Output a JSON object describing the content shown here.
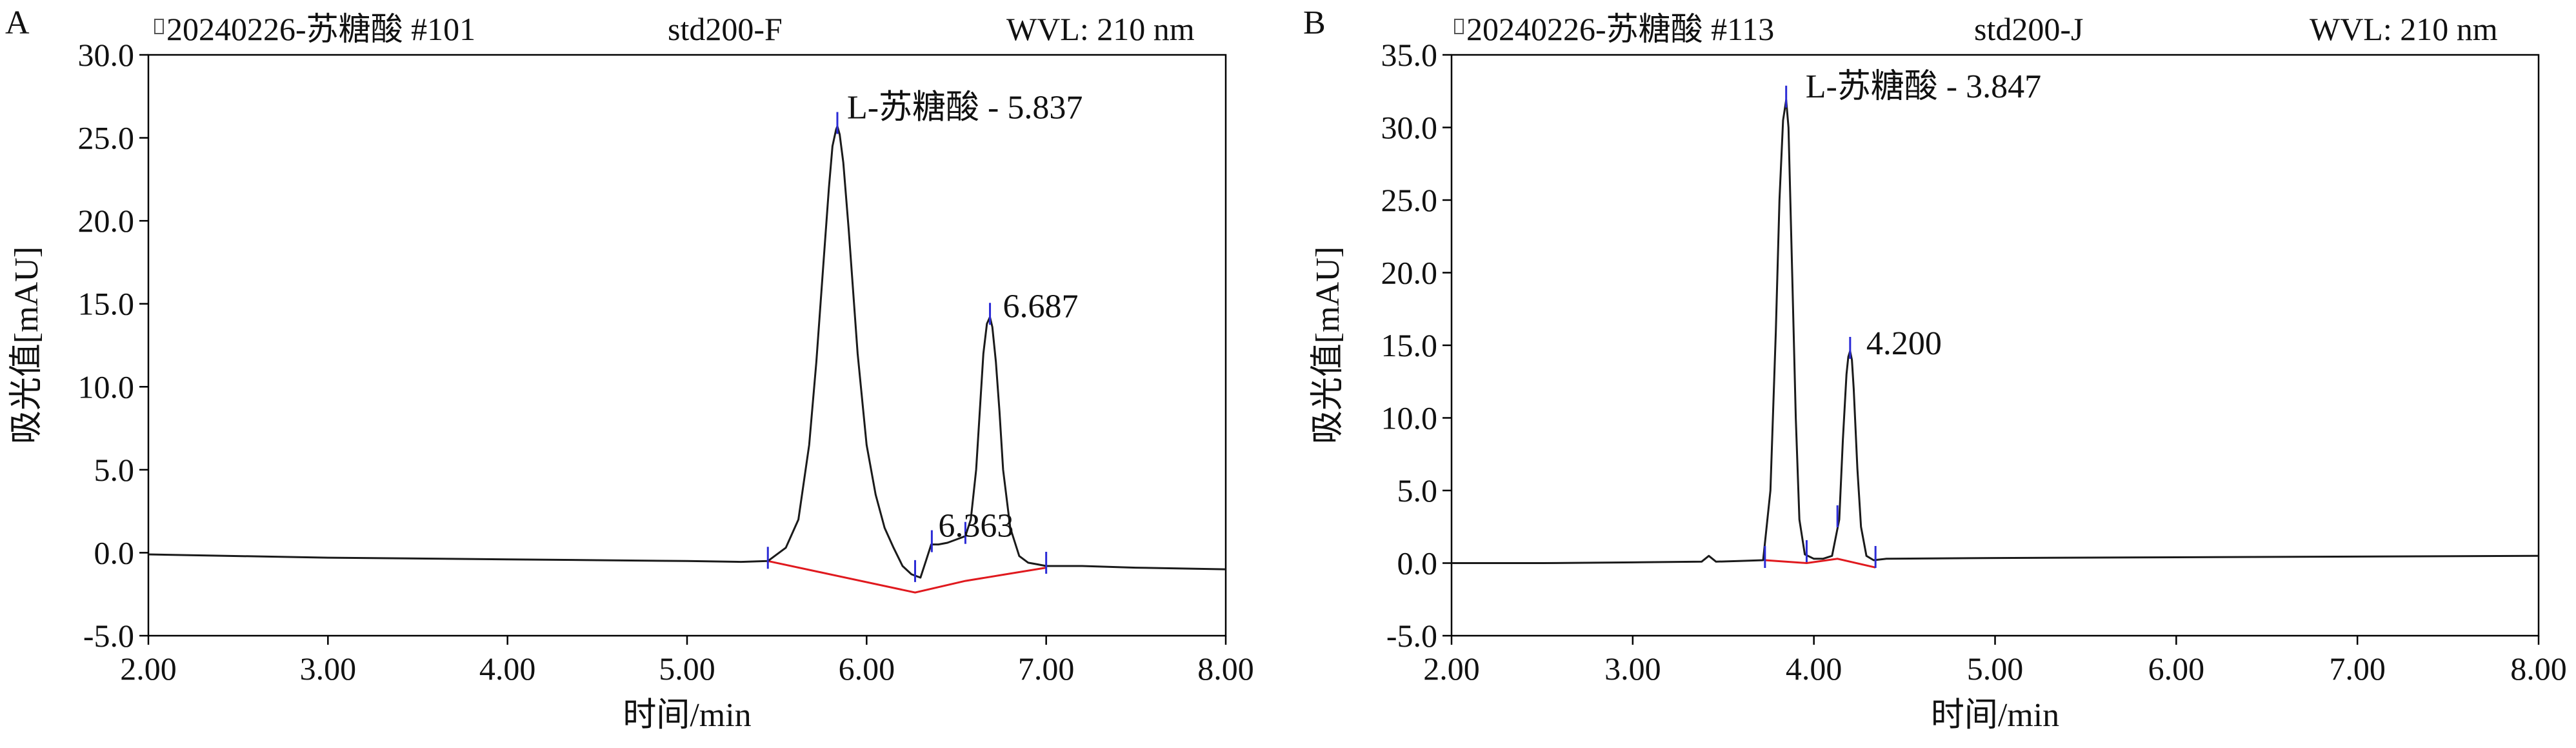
{
  "chart_data": [
    {
      "type": "line",
      "panel_label": "A",
      "sample_title": "20240226-苏糖酸 #101",
      "sample_name": "std200-F",
      "wavelength": "WVL: 210 nm",
      "xlabel": "时间/min",
      "ylabel": "吸光值[mAU]",
      "xlim": [
        2.0,
        8.0
      ],
      "ylim": [
        -5.0,
        30.0
      ],
      "xticks": [
        "2.00",
        "3.00",
        "4.00",
        "5.00",
        "6.00",
        "7.00",
        "8.00"
      ],
      "yticks": [
        "-5.0",
        "0.0",
        "5.0",
        "10.0",
        "15.0",
        "20.0",
        "25.0",
        "30.0"
      ],
      "grid": false,
      "line_color": "#1a1a1a",
      "baseline_color": "#e0191e",
      "marker_color": "#2b2bd6",
      "series": [
        {
          "x": [
            2.0,
            2.5,
            3.0,
            3.5,
            4.0,
            4.5,
            5.0,
            5.3,
            5.45,
            5.55,
            5.62,
            5.68,
            5.72,
            5.76,
            5.79,
            5.81,
            5.83,
            5.837,
            5.85,
            5.87,
            5.9,
            5.95,
            6.0,
            6.05,
            6.1,
            6.15,
            6.2,
            6.25,
            6.3,
            6.33,
            6.36,
            6.4,
            6.45,
            6.5,
            6.55,
            6.58,
            6.61,
            6.63,
            6.65,
            6.67,
            6.687,
            6.7,
            6.72,
            6.74,
            6.76,
            6.8,
            6.85,
            6.9,
            6.95,
            7.0,
            7.2,
            7.5,
            8.0
          ],
          "y": [
            -0.1,
            -0.2,
            -0.3,
            -0.35,
            -0.4,
            -0.45,
            -0.5,
            -0.55,
            -0.5,
            0.3,
            2.0,
            6.5,
            11.5,
            17.5,
            22.0,
            24.5,
            25.5,
            25.7,
            25.2,
            23.5,
            19.5,
            12.0,
            6.5,
            3.5,
            1.5,
            0.3,
            -0.8,
            -1.3,
            -1.5,
            -0.5,
            0.5,
            0.5,
            0.6,
            0.8,
            1.0,
            2.0,
            5.0,
            8.5,
            12.0,
            13.8,
            14.2,
            13.6,
            11.5,
            8.5,
            5.0,
            1.5,
            -0.2,
            -0.6,
            -0.7,
            -0.8,
            -0.8,
            -0.9,
            -1.0
          ]
        }
      ],
      "integration_baseline": {
        "x": [
          5.45,
          6.27,
          6.55,
          7.0
        ],
        "y": [
          -0.5,
          -2.4,
          -1.7,
          -0.9
        ]
      },
      "peak_markers_x": [
        5.45,
        5.837,
        6.27,
        6.363,
        6.55,
        6.687,
        7.0
      ],
      "peaks": [
        {
          "label": "L-苏糖酸  - 5.837",
          "rt": 5.837,
          "height": 25.7
        },
        {
          "label": "6.687",
          "rt": 6.687,
          "height": 14.2
        },
        {
          "label": "6.363",
          "rt": 6.363,
          "height": 0.5
        }
      ]
    },
    {
      "type": "line",
      "panel_label": "B",
      "sample_title": "20240226-苏糖酸 #113",
      "sample_name": "std200-J",
      "wavelength": "WVL: 210 nm",
      "xlabel": "时间/min",
      "ylabel": "吸光值[mAU]",
      "xlim": [
        2.0,
        8.0
      ],
      "ylim": [
        -5.0,
        35.0
      ],
      "xticks": [
        "2.00",
        "3.00",
        "4.00",
        "5.00",
        "6.00",
        "7.00",
        "8.00"
      ],
      "yticks": [
        "-5.0",
        "0.0",
        "5.0",
        "10.0",
        "15.0",
        "20.0",
        "25.0",
        "30.0",
        "35.0"
      ],
      "grid": false,
      "line_color": "#1a1a1a",
      "baseline_color": "#e0191e",
      "marker_color": "#2b2bd6",
      "series": [
        {
          "x": [
            2.0,
            2.5,
            3.0,
            3.38,
            3.42,
            3.46,
            3.6,
            3.72,
            3.76,
            3.79,
            3.81,
            3.83,
            3.847,
            3.86,
            3.88,
            3.9,
            3.92,
            3.95,
            4.0,
            4.05,
            4.1,
            4.14,
            4.16,
            4.18,
            4.19,
            4.2,
            4.21,
            4.22,
            4.24,
            4.26,
            4.29,
            4.33,
            4.4,
            5.0,
            6.0,
            7.0,
            8.0
          ],
          "y": [
            0.0,
            0.0,
            0.05,
            0.1,
            0.5,
            0.1,
            0.15,
            0.2,
            5.0,
            16.0,
            25.0,
            30.5,
            31.9,
            30.0,
            20.0,
            10.0,
            3.0,
            0.6,
            0.3,
            0.3,
            0.5,
            3.0,
            8.5,
            13.0,
            14.2,
            14.6,
            14.0,
            12.0,
            6.5,
            2.5,
            0.5,
            0.2,
            0.3,
            0.35,
            0.4,
            0.45,
            0.5
          ]
        }
      ],
      "integration_baseline": {
        "x": [
          3.73,
          3.96,
          4.13,
          4.34
        ],
        "y": [
          0.2,
          0.0,
          0.3,
          -0.3
        ]
      },
      "peak_markers_x": [
        3.73,
        3.847,
        3.96,
        4.13,
        4.2,
        4.34
      ],
      "peaks": [
        {
          "label": "L-苏糖酸 - 3.847",
          "rt": 3.847,
          "height": 31.9
        },
        {
          "label": "4.200",
          "rt": 4.2,
          "height": 14.6
        }
      ]
    }
  ]
}
